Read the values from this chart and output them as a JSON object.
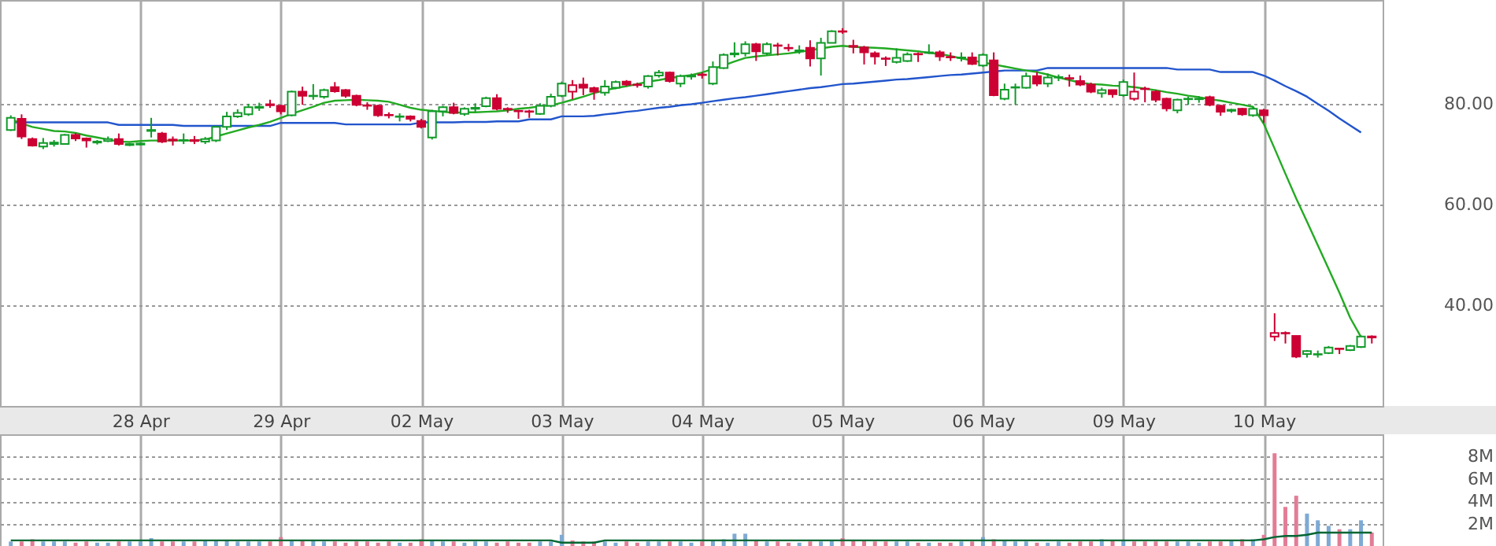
{
  "chart_data": [
    {
      "type": "candlestick",
      "categories": [
        null,
        null,
        null,
        null,
        null,
        null,
        null,
        null,
        null,
        null,
        null,
        null,
        "28 Apr",
        null,
        null,
        null,
        null,
        null,
        null,
        null,
        null,
        null,
        null,
        null,
        null,
        "29 Apr",
        null,
        null,
        null,
        null,
        null,
        null,
        null,
        null,
        null,
        null,
        null,
        null,
        "02 May",
        null,
        null,
        null,
        null,
        null,
        null,
        null,
        null,
        null,
        null,
        null,
        null,
        "03 May",
        null,
        null,
        null,
        null,
        null,
        null,
        null,
        null,
        null,
        null,
        null,
        null,
        "04 May",
        null,
        null,
        null,
        null,
        null,
        null,
        null,
        null,
        null,
        null,
        null,
        null,
        "05 May",
        null,
        null,
        null,
        null,
        null,
        null,
        null,
        null,
        null,
        null,
        null,
        null,
        "06 May",
        null,
        null,
        null,
        null,
        null,
        null,
        null,
        null,
        null,
        null,
        null,
        null,
        "09 May",
        null,
        null,
        null,
        null,
        null,
        null,
        null,
        null,
        null,
        null,
        null,
        null,
        "10 May",
        null,
        null,
        null,
        null,
        null,
        null,
        null,
        null,
        null,
        null
      ],
      "ohlc": [
        [
          74.8,
          77.7,
          74.6,
          77.2
        ],
        [
          77.0,
          77.9,
          73.0,
          73.5
        ],
        [
          73.0,
          73.3,
          71.5,
          71.7
        ],
        [
          71.5,
          73.2,
          71.0,
          72.2
        ],
        [
          72.0,
          72.8,
          71.5,
          72.3
        ],
        [
          72.0,
          74.0,
          71.9,
          73.8
        ],
        [
          73.8,
          74.2,
          72.6,
          73.1
        ],
        [
          73.1,
          73.3,
          71.3,
          72.7
        ],
        [
          72.3,
          72.8,
          71.9,
          72.5
        ],
        [
          72.6,
          73.5,
          72.4,
          73.0
        ],
        [
          73.0,
          74.1,
          71.7,
          72.0
        ],
        [
          71.8,
          72.2,
          71.6,
          72.0
        ],
        [
          71.9,
          72.3,
          71.7,
          72.1
        ],
        [
          74.6,
          77.2,
          73.3,
          74.8
        ],
        [
          74.1,
          74.4,
          72.2,
          72.5
        ],
        [
          72.9,
          73.5,
          71.7,
          72.7
        ],
        [
          72.7,
          74.1,
          72.0,
          72.8
        ],
        [
          72.8,
          73.6,
          72.0,
          72.6
        ],
        [
          72.5,
          73.4,
          72.0,
          73.0
        ],
        [
          72.7,
          75.6,
          72.4,
          75.4
        ],
        [
          75.4,
          78.4,
          74.8,
          77.5
        ],
        [
          77.5,
          78.9,
          77.2,
          78.2
        ],
        [
          77.9,
          80.0,
          77.6,
          79.3
        ],
        [
          79.2,
          80.2,
          78.6,
          79.4
        ],
        [
          79.9,
          80.8,
          79.2,
          79.7
        ],
        [
          79.6,
          79.8,
          77.9,
          78.5
        ],
        [
          77.7,
          82.6,
          77.5,
          82.4
        ],
        [
          82.4,
          83.4,
          79.8,
          81.6
        ],
        [
          81.5,
          83.9,
          80.8,
          81.6
        ],
        [
          81.4,
          83.0,
          81.0,
          82.7
        ],
        [
          83.3,
          84.3,
          82.2,
          82.5
        ],
        [
          82.7,
          82.9,
          81.2,
          81.6
        ],
        [
          81.6,
          81.8,
          79.5,
          79.8
        ],
        [
          79.7,
          80.3,
          78.8,
          79.6
        ],
        [
          79.6,
          79.8,
          77.4,
          77.7
        ],
        [
          77.8,
          78.3,
          77.1,
          77.7
        ],
        [
          77.4,
          78.1,
          76.5,
          77.5
        ],
        [
          77.5,
          77.7,
          76.5,
          77.0
        ],
        [
          76.6,
          77.0,
          75.1,
          75.4
        ],
        [
          73.3,
          78.8,
          72.9,
          78.5
        ],
        [
          78.5,
          79.6,
          77.5,
          79.3
        ],
        [
          79.3,
          80.2,
          77.9,
          78.2
        ],
        [
          78.0,
          79.3,
          77.6,
          79.0
        ],
        [
          79.0,
          80.1,
          78.4,
          79.2
        ],
        [
          79.5,
          81.4,
          79.3,
          81.1
        ],
        [
          81.1,
          81.9,
          78.7,
          79.0
        ],
        [
          79.0,
          79.3,
          78.2,
          78.9
        ],
        [
          78.6,
          78.8,
          77.0,
          78.5
        ],
        [
          78.5,
          78.8,
          77.2,
          78.4
        ],
        [
          78.0,
          80.1,
          77.8,
          79.6
        ],
        [
          79.6,
          82.0,
          79.3,
          81.4
        ],
        [
          81.6,
          84.4,
          81.3,
          84.0
        ],
        [
          82.4,
          84.7,
          80.9,
          83.7
        ],
        [
          83.8,
          85.2,
          81.7,
          83.2
        ],
        [
          83.1,
          83.4,
          80.8,
          82.4
        ],
        [
          82.2,
          84.7,
          81.6,
          83.4
        ],
        [
          83.2,
          84.6,
          82.9,
          84.3
        ],
        [
          84.4,
          84.7,
          83.5,
          83.8
        ],
        [
          83.8,
          84.2,
          83.2,
          83.7
        ],
        [
          83.4,
          85.7,
          83.0,
          85.5
        ],
        [
          85.6,
          86.7,
          85.2,
          86.2
        ],
        [
          86.2,
          86.4,
          84.2,
          84.5
        ],
        [
          84.0,
          85.8,
          83.3,
          85.5
        ],
        [
          85.4,
          86.0,
          84.8,
          85.6
        ],
        [
          85.8,
          86.2,
          85.0,
          85.7
        ],
        [
          84.0,
          88.4,
          83.7,
          87.3
        ],
        [
          87.1,
          90.0,
          86.9,
          89.7
        ],
        [
          89.8,
          92.2,
          89.2,
          90.0
        ],
        [
          90.0,
          92.4,
          89.4,
          91.8
        ],
        [
          91.8,
          92.1,
          88.5,
          90.4
        ],
        [
          90.0,
          92.2,
          89.6,
          91.8
        ],
        [
          91.6,
          92.1,
          89.6,
          91.5
        ],
        [
          91.1,
          91.9,
          90.4,
          91.0
        ],
        [
          90.4,
          91.6,
          89.9,
          90.6
        ],
        [
          91.1,
          92.6,
          87.4,
          89.0
        ],
        [
          89.0,
          93.1,
          85.6,
          92.1
        ],
        [
          92.1,
          94.6,
          92.0,
          94.4
        ],
        [
          94.4,
          95.0,
          93.9,
          94.3
        ],
        [
          91.5,
          92.7,
          90.0,
          91.3
        ],
        [
          91.2,
          91.5,
          87.8,
          90.2
        ],
        [
          90.0,
          90.4,
          87.8,
          89.4
        ],
        [
          89.0,
          89.4,
          87.5,
          88.9
        ],
        [
          88.3,
          91.0,
          88.0,
          89.1
        ],
        [
          88.5,
          90.2,
          88.3,
          89.8
        ],
        [
          89.9,
          90.2,
          88.3,
          89.8
        ],
        [
          90.1,
          91.8,
          89.9,
          90.2
        ],
        [
          90.2,
          90.6,
          88.5,
          89.4
        ],
        [
          89.3,
          90.2,
          88.5,
          89.2
        ],
        [
          89.1,
          90.2,
          88.4,
          89.2
        ],
        [
          89.2,
          90.2,
          87.7,
          87.9
        ],
        [
          87.6,
          90.0,
          87.3,
          89.7
        ],
        [
          88.6,
          90.2,
          81.5,
          81.7
        ],
        [
          81.0,
          84.0,
          80.7,
          82.8
        ],
        [
          83.2,
          84.0,
          79.8,
          83.3
        ],
        [
          83.2,
          86.2,
          83.0,
          85.5
        ],
        [
          85.5,
          86.3,
          83.5,
          84.0
        ],
        [
          84.0,
          86.0,
          83.3,
          85.2
        ],
        [
          85.2,
          85.8,
          84.5,
          85.3
        ],
        [
          85.1,
          85.8,
          83.4,
          85.0
        ],
        [
          84.5,
          85.6,
          83.5,
          83.8
        ],
        [
          83.8,
          84.2,
          82.1,
          82.4
        ],
        [
          82.1,
          83.2,
          81.2,
          82.7
        ],
        [
          82.7,
          82.8,
          81.2,
          81.9
        ],
        [
          81.7,
          84.8,
          81.4,
          84.3
        ],
        [
          81.0,
          86.2,
          80.6,
          82.4
        ],
        [
          83.0,
          83.4,
          80.3,
          82.9
        ],
        [
          82.4,
          82.7,
          80.3,
          80.8
        ],
        [
          81.0,
          81.2,
          78.5,
          79.1
        ],
        [
          78.7,
          81.0,
          78.1,
          80.8
        ],
        [
          80.9,
          81.4,
          79.8,
          81.0
        ],
        [
          80.9,
          81.5,
          80.2,
          81.0
        ],
        [
          81.3,
          81.6,
          79.5,
          79.8
        ],
        [
          79.6,
          79.8,
          77.6,
          78.4
        ],
        [
          78.6,
          79.0,
          78.2,
          78.8
        ],
        [
          79.0,
          79.2,
          77.6,
          77.9
        ],
        [
          77.7,
          79.4,
          77.4,
          79.0
        ],
        [
          78.7,
          79.0,
          76.2,
          77.7
        ],
        [
          33.8,
          38.4,
          32.9,
          34.5
        ],
        [
          34.5,
          34.8,
          32.4,
          34.4
        ],
        [
          33.9,
          34.0,
          29.5,
          29.8
        ],
        [
          30.3,
          31.1,
          29.6,
          30.9
        ],
        [
          30.2,
          31.0,
          29.6,
          30.3
        ],
        [
          30.5,
          31.9,
          30.3,
          31.6
        ],
        [
          31.4,
          31.4,
          30.3,
          31.3
        ],
        [
          31.1,
          32.1,
          30.9,
          31.9
        ],
        [
          31.7,
          34.0,
          31.5,
          33.8
        ],
        [
          33.8,
          34.0,
          32.4,
          33.6
        ]
      ],
      "colors": [
        "#129a2a",
        "#cc0033",
        "#cc0033",
        "#129a2a",
        "#129a2a",
        "#129a2a",
        "#cc0033",
        "#cc0033",
        "#129a2a",
        "#129a2a",
        "#cc0033",
        "#129a2a",
        "#129a2a",
        "#129a2a",
        "#cc0033",
        "#cc0033",
        "#129a2a",
        "#cc0033",
        "#129a2a",
        "#129a2a",
        "#129a2a",
        "#129a2a",
        "#129a2a",
        "#129a2a",
        "#cc0033",
        "#cc0033",
        "#129a2a",
        "#cc0033",
        "#129a2a",
        "#129a2a",
        "#cc0033",
        "#cc0033",
        "#cc0033",
        "#cc0033",
        "#cc0033",
        "#cc0033",
        "#129a2a",
        "#cc0033",
        "#cc0033",
        "#129a2a",
        "#129a2a",
        "#cc0033",
        "#129a2a",
        "#129a2a",
        "#129a2a",
        "#cc0033",
        "#cc0033",
        "#cc0033",
        "#cc0033",
        "#129a2a",
        "#129a2a",
        "#129a2a",
        "#cc0033",
        "#cc0033",
        "#cc0033",
        "#129a2a",
        "#129a2a",
        "#cc0033",
        "#cc0033",
        "#129a2a",
        "#129a2a",
        "#cc0033",
        "#129a2a",
        "#129a2a",
        "#cc0033",
        "#129a2a",
        "#129a2a",
        "#129a2a",
        "#129a2a",
        "#cc0033",
        "#129a2a",
        "#cc0033",
        "#cc0033",
        "#129a2a",
        "#cc0033",
        "#129a2a",
        "#129a2a",
        "#cc0033",
        "#cc0033",
        "#cc0033",
        "#cc0033",
        "#cc0033",
        "#129a2a",
        "#129a2a",
        "#cc0033",
        "#129a2a",
        "#cc0033",
        "#cc0033",
        "#129a2a",
        "#cc0033",
        "#129a2a",
        "#cc0033",
        "#129a2a",
        "#129a2a",
        "#129a2a",
        "#cc0033",
        "#129a2a",
        "#129a2a",
        "#cc0033",
        "#cc0033",
        "#cc0033",
        "#129a2a",
        "#cc0033",
        "#129a2a",
        "#cc0033",
        "#cc0033",
        "#cc0033",
        "#cc0033",
        "#129a2a",
        "#129a2a",
        "#129a2a",
        "#cc0033",
        "#cc0033",
        "#129a2a",
        "#cc0033",
        "#129a2a",
        "#cc0033",
        "#cc0033",
        "#cc0033",
        "#cc0033",
        "#129a2a",
        "#129a2a",
        "#129a2a",
        "#cc0033",
        "#129a2a",
        "#129a2a",
        "#cc0033"
      ],
      "series": [
        {
          "type": "line",
          "color": "#2255cc",
          "values": [
            76.3,
            76.3,
            76.3,
            76.3,
            76.3,
            76.3,
            76.3,
            76.3,
            76.3,
            76.3,
            75.8,
            75.8,
            75.8,
            75.8,
            75.8,
            75.8,
            75.6,
            75.6,
            75.6,
            75.6,
            75.6,
            75.6,
            75.6,
            75.6,
            75.6,
            76.2,
            76.2,
            76.2,
            76.2,
            76.2,
            76.2,
            75.9,
            75.9,
            75.9,
            75.9,
            75.9,
            75.9,
            75.9,
            76.3,
            76.3,
            76.3,
            76.3,
            76.4,
            76.4,
            76.4,
            76.5,
            76.5,
            76.5,
            76.9,
            76.9,
            76.9,
            77.5,
            77.5,
            77.5,
            77.6,
            77.9,
            78.1,
            78.4,
            78.6,
            78.9,
            79.2,
            79.4,
            79.7,
            79.9,
            80.2,
            80.5,
            80.8,
            81.1,
            81.3,
            81.6,
            81.9,
            82.2,
            82.5,
            82.8,
            83.1,
            83.3,
            83.6,
            83.9,
            84.0,
            84.2,
            84.4,
            84.6,
            84.8,
            84.9,
            85.1,
            85.3,
            85.5,
            85.7,
            85.8,
            86.0,
            86.2,
            86.4,
            86.6,
            86.6,
            86.6,
            86.6,
            87.1,
            87.1,
            87.1,
            87.1,
            87.1,
            87.1,
            87.1,
            87.1,
            87.1,
            87.1,
            87.1,
            87.1,
            86.8,
            86.8,
            86.8,
            86.8,
            86.3,
            86.3,
            86.3,
            86.3,
            85.6,
            84.6,
            83.5,
            82.5,
            81.4,
            80.0,
            78.6,
            77.1,
            75.7,
            74.3,
            null
          ]
        },
        {
          "type": "line",
          "color": "#22aa22",
          "values": [
            76.9,
            76.1,
            75.4,
            75.0,
            74.6,
            74.5,
            74.2,
            73.7,
            73.3,
            72.9,
            72.5,
            72.4,
            72.6,
            72.7,
            72.7,
            72.7,
            72.7,
            72.7,
            72.9,
            73.5,
            74.1,
            74.7,
            75.3,
            75.8,
            76.4,
            77.2,
            78.0,
            78.7,
            79.4,
            80.2,
            80.6,
            80.7,
            80.8,
            80.7,
            80.6,
            80.4,
            79.8,
            79.2,
            78.8,
            78.6,
            78.4,
            78.2,
            78.3,
            78.3,
            78.4,
            78.5,
            78.7,
            79.0,
            79.2,
            79.5,
            79.7,
            80.2,
            80.8,
            81.4,
            82.1,
            82.7,
            83.1,
            83.5,
            83.9,
            84.4,
            84.7,
            85.1,
            85.4,
            85.7,
            86.2,
            86.9,
            87.6,
            88.4,
            89.1,
            89.4,
            89.6,
            89.8,
            90.0,
            90.3,
            90.6,
            91.0,
            91.3,
            91.5,
            91.3,
            91.2,
            91.1,
            91.0,
            90.8,
            90.6,
            90.4,
            90.1,
            89.9,
            89.5,
            89.0,
            88.6,
            88.2,
            87.8,
            87.4,
            87.0,
            86.6,
            86.3,
            85.8,
            85.2,
            84.7,
            84.2,
            83.9,
            83.8,
            83.6,
            83.5,
            83.3,
            83.0,
            82.7,
            82.3,
            82.0,
            81.6,
            81.3,
            80.9,
            80.6,
            80.2,
            79.8,
            79.4,
            76.0,
            71.1,
            66.1,
            61.2,
            56.6,
            51.9,
            47.2,
            42.5,
            37.5,
            33.7,
            null
          ]
        }
      ],
      "ylim": [
        20,
        100.6
      ],
      "yticks": [
        {
          "value": 40,
          "label": "40.00"
        },
        {
          "value": 60,
          "label": "60.00"
        },
        {
          "value": 80,
          "label": "80.00"
        }
      ],
      "grid": true
    },
    {
      "type": "bar",
      "categories": [
        null,
        null,
        null,
        null,
        null,
        null,
        null,
        null,
        null,
        null,
        null,
        null,
        null,
        null,
        null,
        null,
        null,
        null,
        null,
        null,
        null,
        null,
        null,
        null,
        null,
        null,
        null,
        null,
        null,
        null,
        null,
        null,
        null,
        null,
        null,
        null,
        null,
        null,
        null,
        null,
        null,
        null,
        null,
        null,
        null,
        null,
        null,
        null,
        null,
        null,
        null,
        null,
        null,
        null,
        null,
        null,
        null,
        null,
        null,
        null,
        null,
        null,
        null,
        null,
        null,
        null,
        null,
        null,
        null,
        null,
        null,
        null,
        null,
        null,
        null,
        null,
        null,
        null,
        null,
        null,
        null,
        null,
        null,
        null,
        null,
        null,
        null,
        null,
        null,
        null,
        null,
        null,
        null,
        null,
        null,
        null,
        null,
        null,
        null,
        null,
        null,
        null,
        null,
        null,
        null,
        null,
        null,
        null,
        null,
        null,
        null,
        null,
        null,
        null,
        null,
        null,
        null,
        null,
        null,
        null,
        null,
        null,
        null,
        null,
        null,
        null,
        null
      ],
      "series": [
        {
          "type": "bar",
          "values": [
            0.4,
            0.4,
            0.6,
            0.4,
            0.4,
            0.4,
            0.3,
            0.4,
            0.3,
            0.3,
            0.4,
            0.4,
            0.4,
            0.7,
            0.4,
            0.4,
            0.4,
            0.4,
            0.5,
            0.5,
            0.5,
            0.4,
            0.4,
            0.4,
            0.4,
            0.8,
            0.5,
            0.5,
            0.5,
            0.4,
            0.4,
            0.3,
            0.4,
            0.4,
            0.3,
            0.4,
            0.3,
            0.3,
            0.6,
            0.5,
            0.4,
            0.4,
            0.3,
            0.4,
            0.4,
            0.3,
            0.4,
            0.3,
            0.3,
            0.4,
            0.4,
            1.0,
            0.5,
            0.4,
            0.4,
            0.4,
            0.3,
            0.4,
            0.3,
            0.4,
            0.4,
            0.4,
            0.4,
            0.3,
            0.4,
            0.5,
            0.6,
            1.1,
            1.1,
            0.5,
            0.4,
            0.4,
            0.3,
            0.3,
            0.4,
            0.4,
            0.5,
            0.7,
            0.5,
            0.5,
            0.4,
            0.4,
            0.4,
            0.4,
            0.3,
            0.3,
            0.3,
            0.3,
            0.4,
            0.4,
            0.8,
            0.6,
            0.5,
            0.4,
            0.4,
            0.3,
            0.3,
            0.4,
            0.3,
            0.4,
            0.4,
            0.6,
            0.5,
            0.5,
            0.4,
            0.4,
            0.4,
            0.4,
            0.4,
            0.4,
            0.3,
            0.4,
            0.4,
            0.5,
            0.6,
            0.6,
            1.0,
            8.3,
            3.5,
            4.5,
            2.9,
            2.3,
            1.8,
            1.5,
            1.5,
            2.3,
            1.2
          ],
          "colors": [
            "#7eaad4",
            "#e27d96",
            "#e27d96",
            "#7eaad4",
            "#7eaad4",
            "#7eaad4",
            "#e27d96",
            "#e27d96",
            "#7eaad4",
            "#7eaad4",
            "#e27d96",
            "#7eaad4",
            "#7eaad4",
            "#7eaad4",
            "#e27d96",
            "#e27d96",
            "#7eaad4",
            "#e27d96",
            "#7eaad4",
            "#7eaad4",
            "#7eaad4",
            "#7eaad4",
            "#7eaad4",
            "#7eaad4",
            "#e27d96",
            "#e27d96",
            "#7eaad4",
            "#e27d96",
            "#7eaad4",
            "#7eaad4",
            "#e27d96",
            "#e27d96",
            "#e27d96",
            "#e27d96",
            "#e27d96",
            "#e27d96",
            "#7eaad4",
            "#e27d96",
            "#e27d96",
            "#7eaad4",
            "#7eaad4",
            "#e27d96",
            "#7eaad4",
            "#7eaad4",
            "#7eaad4",
            "#e27d96",
            "#e27d96",
            "#e27d96",
            "#e27d96",
            "#7eaad4",
            "#7eaad4",
            "#7eaad4",
            "#e27d96",
            "#e27d96",
            "#e27d96",
            "#7eaad4",
            "#7eaad4",
            "#e27d96",
            "#e27d96",
            "#7eaad4",
            "#7eaad4",
            "#e27d96",
            "#7eaad4",
            "#7eaad4",
            "#e27d96",
            "#7eaad4",
            "#7eaad4",
            "#7eaad4",
            "#7eaad4",
            "#e27d96",
            "#7eaad4",
            "#e27d96",
            "#e27d96",
            "#7eaad4",
            "#e27d96",
            "#7eaad4",
            "#7eaad4",
            "#e27d96",
            "#e27d96",
            "#e27d96",
            "#e27d96",
            "#e27d96",
            "#7eaad4",
            "#7eaad4",
            "#e27d96",
            "#7eaad4",
            "#e27d96",
            "#e27d96",
            "#7eaad4",
            "#e27d96",
            "#7eaad4",
            "#e27d96",
            "#7eaad4",
            "#7eaad4",
            "#7eaad4",
            "#e27d96",
            "#7eaad4",
            "#7eaad4",
            "#e27d96",
            "#e27d96",
            "#e27d96",
            "#7eaad4",
            "#e27d96",
            "#7eaad4",
            "#e27d96",
            "#e27d96",
            "#e27d96",
            "#e27d96",
            "#7eaad4",
            "#7eaad4",
            "#7eaad4",
            "#e27d96",
            "#e27d96",
            "#7eaad4",
            "#e27d96",
            "#7eaad4",
            "#e27d96",
            "#e27d96",
            "#e27d96",
            "#e27d96",
            "#7eaad4",
            "#7eaad4",
            "#7eaad4",
            "#e27d96",
            "#7eaad4",
            "#7eaad4",
            "#e27d96"
          ]
        },
        {
          "type": "line",
          "color": "#006633",
          "values": [
            0.5,
            0.5,
            0.5,
            0.5,
            0.5,
            0.5,
            0.5,
            0.5,
            0.5,
            0.5,
            0.5,
            0.5,
            0.5,
            0.5,
            0.5,
            0.5,
            0.5,
            0.5,
            0.5,
            0.5,
            0.5,
            0.5,
            0.5,
            0.5,
            0.5,
            0.5,
            0.5,
            0.5,
            0.5,
            0.5,
            0.5,
            0.5,
            0.5,
            0.5,
            0.5,
            0.5,
            0.5,
            0.5,
            0.5,
            0.5,
            0.5,
            0.5,
            0.5,
            0.5,
            0.5,
            0.5,
            0.5,
            0.5,
            0.5,
            0.5,
            0.5,
            0.3,
            0.3,
            0.3,
            0.3,
            0.5,
            0.5,
            0.5,
            0.5,
            0.5,
            0.5,
            0.5,
            0.5,
            0.5,
            0.5,
            0.5,
            0.5,
            0.5,
            0.5,
            0.5,
            0.5,
            0.5,
            0.5,
            0.5,
            0.5,
            0.5,
            0.5,
            0.5,
            0.5,
            0.5,
            0.5,
            0.5,
            0.5,
            0.5,
            0.5,
            0.5,
            0.5,
            0.5,
            0.5,
            0.5,
            0.5,
            0.5,
            0.5,
            0.5,
            0.5,
            0.5,
            0.5,
            0.5,
            0.5,
            0.5,
            0.5,
            0.5,
            0.5,
            0.5,
            0.5,
            0.5,
            0.5,
            0.5,
            0.5,
            0.5,
            0.5,
            0.5,
            0.5,
            0.5,
            0.5,
            0.5,
            0.6,
            0.8,
            0.9,
            0.9,
            1.0,
            1.2,
            1.2,
            1.2,
            1.2,
            1.2,
            1.2
          ]
        }
      ],
      "ylim": [
        0,
        10
      ],
      "yticks": [
        {
          "value": 2,
          "label": "2M"
        },
        {
          "value": 4,
          "label": "4M"
        },
        {
          "value": 6,
          "label": "6M"
        },
        {
          "value": 8,
          "label": "8M"
        }
      ],
      "tick_labels": "y",
      "grid": true
    }
  ]
}
